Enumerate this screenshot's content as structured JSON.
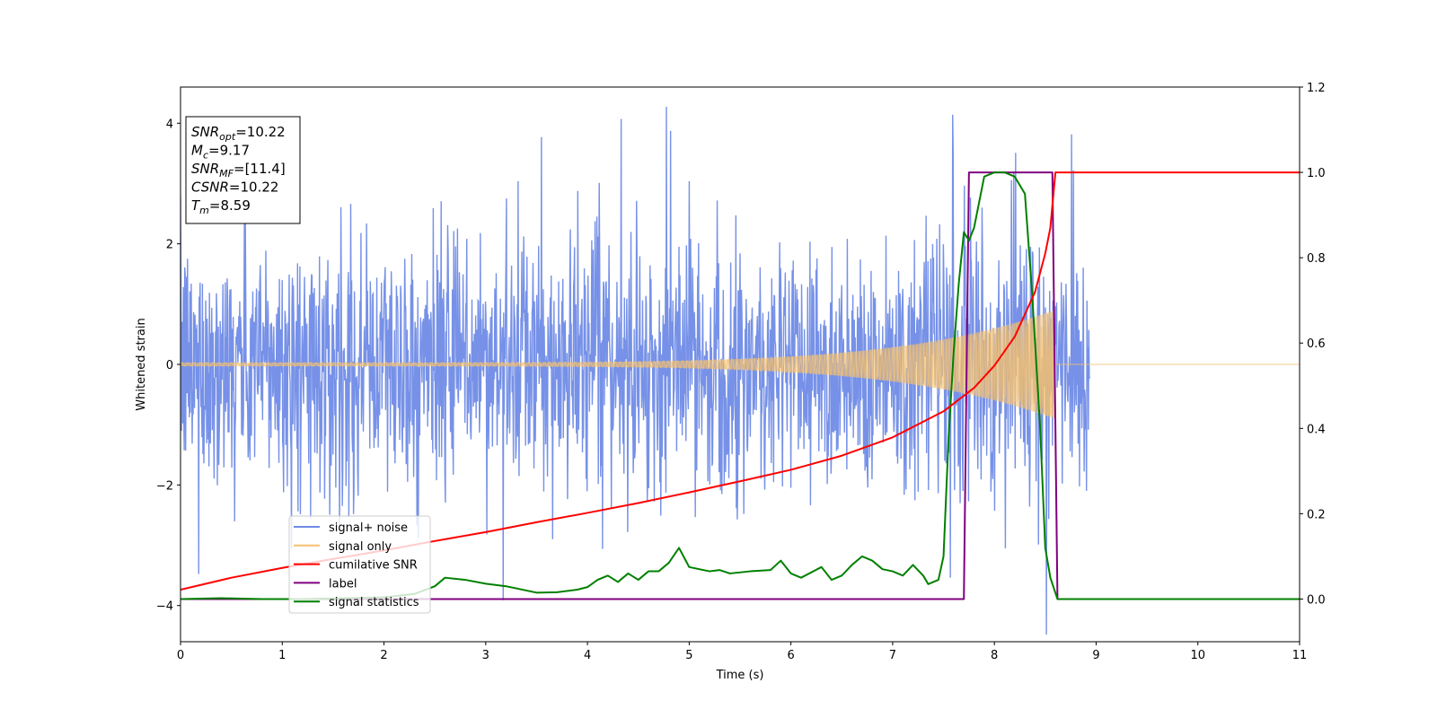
{
  "chart_data": {
    "type": "line",
    "xlabel": "Time (s)",
    "ylabel": "Whitened strain",
    "xlim": [
      0,
      11
    ],
    "ylim_left": [
      -4.6,
      4.6
    ],
    "ylim_right": [
      -0.1,
      1.2
    ],
    "x_ticks": [
      0,
      1,
      2,
      3,
      4,
      5,
      6,
      7,
      8,
      9,
      10,
      11
    ],
    "y_left_ticks": [
      -4,
      -2,
      0,
      2,
      4
    ],
    "y_left_tick_labels": [
      "−4",
      "−2",
      "0",
      "2",
      "4"
    ],
    "y_right_ticks": [
      0.0,
      0.2,
      0.4,
      0.6,
      0.8,
      1.0,
      1.2
    ],
    "y_right_tick_labels": [
      "0.0",
      "0.2",
      "0.4",
      "0.6",
      "0.8",
      "1.0",
      "1.2"
    ],
    "legend_position": "lower-left",
    "info_box": {
      "position": "top-left",
      "lines": [
        {
          "var": "SNR",
          "sub": "opt",
          "value": "=10.22"
        },
        {
          "var": "M",
          "sub": "c",
          "value": "=9.17"
        },
        {
          "var": "SNR",
          "sub": "MF",
          "value": "=[11.4]"
        },
        {
          "var": "CSNR",
          "sub": "",
          "value": "=10.22"
        },
        {
          "var": "T",
          "sub": "m",
          "value": "=8.59"
        }
      ]
    },
    "series": [
      {
        "name": "signal+ noise",
        "axis": "left",
        "color": "#6f8be6",
        "kind": "noise",
        "noise_sigma": 1.0,
        "signal_end": 8.59
      },
      {
        "name": "signal only",
        "axis": "left",
        "color": "#f5c16f",
        "kind": "chirp",
        "x_start": 0,
        "x_end": 8.59,
        "amplitude_start": 0.03,
        "amplitude_end": 0.9
      },
      {
        "name": "cumilative SNR",
        "axis": "right",
        "color": "#ff0000",
        "x": [
          0,
          0.5,
          1,
          1.5,
          2,
          2.5,
          3,
          3.5,
          4,
          4.5,
          5,
          5.5,
          6,
          6.5,
          7,
          7.5,
          7.8,
          8,
          8.2,
          8.4,
          8.5,
          8.55,
          8.6,
          11
        ],
        "y": [
          0.022,
          0.05,
          0.073,
          0.094,
          0.114,
          0.136,
          0.157,
          0.18,
          0.202,
          0.225,
          0.25,
          0.276,
          0.303,
          0.336,
          0.379,
          0.44,
          0.495,
          0.547,
          0.615,
          0.72,
          0.81,
          0.87,
          1.0,
          1.0
        ]
      },
      {
        "name": "label",
        "axis": "right",
        "color": "#800080",
        "x": [
          0,
          7.7,
          7.75,
          8.57,
          8.62,
          11
        ],
        "y": [
          0,
          0,
          1,
          1,
          0,
          0
        ]
      },
      {
        "name": "signal statistics",
        "axis": "right",
        "color": "#008000",
        "x": [
          0,
          0.4,
          0.8,
          1.2,
          1.6,
          2.0,
          2.3,
          2.5,
          2.6,
          2.8,
          3.0,
          3.2,
          3.5,
          3.7,
          3.9,
          4.0,
          4.1,
          4.2,
          4.3,
          4.4,
          4.5,
          4.6,
          4.7,
          4.8,
          4.9,
          5.0,
          5.2,
          5.3,
          5.4,
          5.6,
          5.8,
          5.9,
          6.0,
          6.1,
          6.3,
          6.4,
          6.5,
          6.6,
          6.7,
          6.8,
          6.9,
          7.0,
          7.1,
          7.2,
          7.3,
          7.35,
          7.45,
          7.5,
          7.55,
          7.6,
          7.65,
          7.7,
          7.75,
          7.8,
          7.9,
          8.0,
          8.1,
          8.2,
          8.3,
          8.37,
          8.45,
          8.5,
          8.55,
          8.62,
          11
        ],
        "y": [
          0.0,
          0.002,
          0.0,
          0.0,
          0.002,
          0.004,
          0.012,
          0.03,
          0.05,
          0.045,
          0.036,
          0.03,
          0.015,
          0.016,
          0.022,
          0.028,
          0.045,
          0.055,
          0.04,
          0.06,
          0.045,
          0.065,
          0.065,
          0.085,
          0.12,
          0.075,
          0.065,
          0.068,
          0.06,
          0.065,
          0.068,
          0.09,
          0.06,
          0.05,
          0.075,
          0.045,
          0.055,
          0.08,
          0.1,
          0.09,
          0.07,
          0.065,
          0.055,
          0.08,
          0.055,
          0.035,
          0.045,
          0.1,
          0.38,
          0.58,
          0.74,
          0.86,
          0.84,
          0.87,
          0.99,
          1.0,
          1.0,
          0.99,
          0.95,
          0.72,
          0.4,
          0.12,
          0.05,
          0.0,
          0.0
        ]
      }
    ]
  }
}
